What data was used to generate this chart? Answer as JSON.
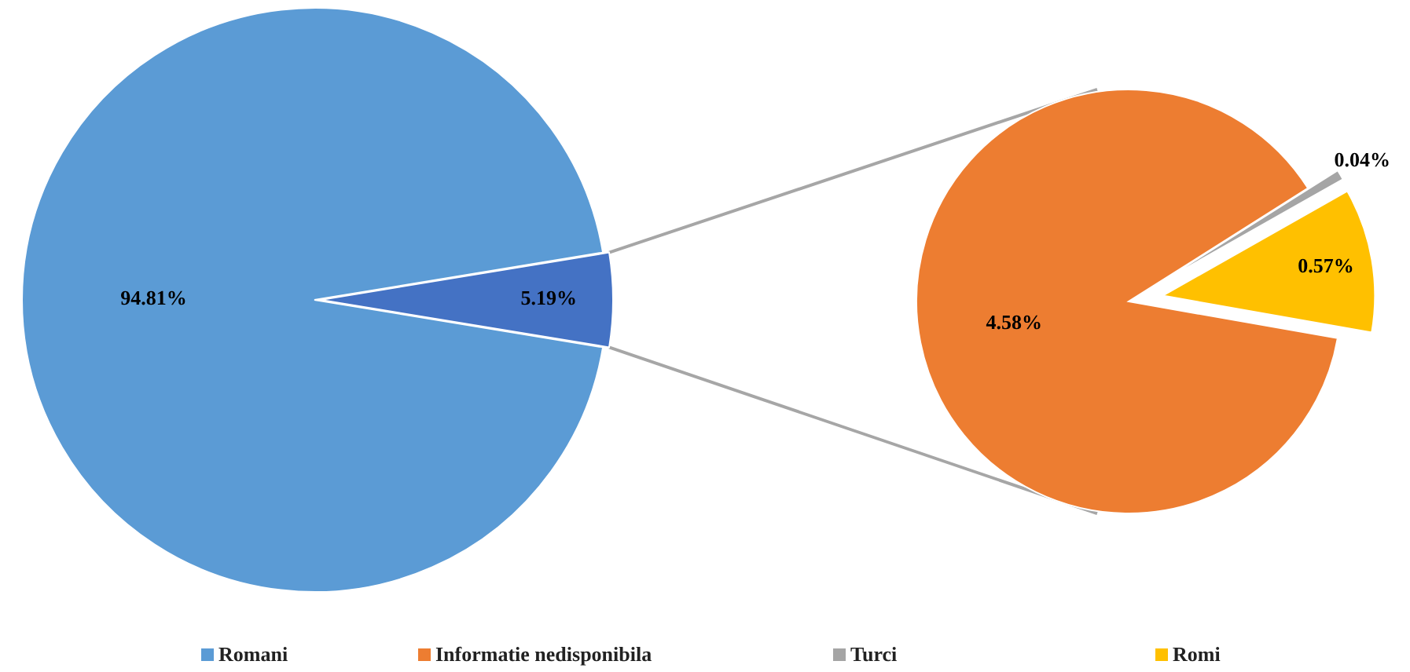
{
  "chart_data": [
    {
      "type": "pie",
      "categories": [
        "Romani",
        null
      ],
      "values": [
        94.81,
        5.19
      ],
      "colors": [
        "#5b9bd5",
        "#4472c4"
      ],
      "value_labels": [
        "94.81%",
        "5.19%"
      ],
      "legend": "bottom"
    },
    {
      "type": "pie",
      "categories": [
        "Informatie nedisponibila",
        "Turci",
        "Romi"
      ],
      "values": [
        4.58,
        0.04,
        0.57
      ],
      "colors": [
        "#ed7d31",
        "#a5a5a5",
        "#ffc000"
      ],
      "value_labels": [
        "4.58%",
        "0.04%",
        "0.57%"
      ],
      "legend": "bottom"
    }
  ]
}
